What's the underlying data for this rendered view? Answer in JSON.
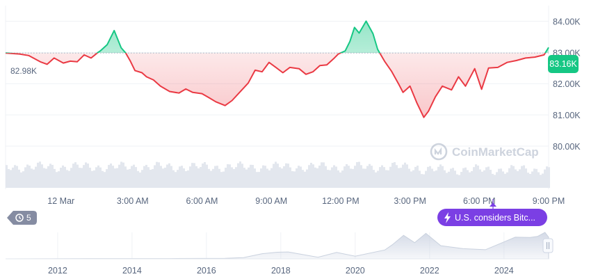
{
  "colors": {
    "up": "#16c784",
    "down": "#ea3943",
    "event_badge": "#7b3fe4",
    "history_badge": "#858ca2",
    "axis_text": "#58667e",
    "grid": "#eff2f5"
  },
  "badges": {
    "start_value": "82.98K",
    "current_value": "83.16K",
    "history_count": "5",
    "history_icon": "history-icon",
    "event_icon": "lightning-icon",
    "event_text": "U.S. considers Bitc..."
  },
  "watermark": {
    "text": "CoinMarketCap",
    "icon": "coinmarketcap-logo-icon"
  },
  "navigator": {
    "handle_icon": "pause-icon"
  },
  "chart_data": [
    {
      "type": "line",
      "baseline": 82.98,
      "ylim": [
        79.6,
        84.5
      ],
      "y_ticks": [
        "84.00K",
        "83.00K",
        "82.00K",
        "81.00K",
        "80.00K"
      ],
      "y_tick_values": [
        84,
        83,
        82,
        81,
        80
      ],
      "x_ticks": [
        "12 Mar",
        "3:00 AM",
        "6:00 AM",
        "9:00 AM",
        "12:00 PM",
        "3:00 PM",
        "6:00 PM",
        "9:00 PM"
      ],
      "x_tick_hours": [
        -0.1,
        3,
        6,
        9,
        12,
        15,
        18,
        21
      ],
      "x_range_hours": [
        -2.5,
        21
      ],
      "series": [
        {
          "x": [
            -2.5,
            -1.9,
            -1.5,
            -1.0,
            -0.7,
            -0.4,
            0,
            0.3,
            0.6,
            0.9,
            1.2,
            1.5,
            1.6,
            1.9,
            2.2,
            2.5,
            2.7,
            2.9,
            3.1,
            3.4,
            3.6,
            3.9,
            4.2,
            4.6,
            5.0,
            5.3,
            5.6,
            6.0,
            6.3,
            6.6,
            7.0,
            7.3,
            7.6,
            8.0,
            8.3,
            8.6,
            8.9,
            9.2,
            9.5,
            9.8,
            10.2,
            10.5,
            10.8,
            11.1,
            11.4,
            11.7,
            11.9,
            12.2,
            12.4,
            12.6,
            12.8,
            13.1,
            13.4,
            13.6,
            13.9,
            14.2,
            14.5,
            14.7,
            15.0,
            15.3,
            15.6,
            15.8,
            16.1,
            16.4,
            16.8,
            17.1,
            17.4,
            17.8,
            18.1,
            18.4,
            18.8,
            19.2,
            19.6,
            20.0,
            20.4,
            20.8,
            21.0
          ],
          "y": [
            82.98,
            82.95,
            82.9,
            82.7,
            82.62,
            82.82,
            82.66,
            82.72,
            82.7,
            82.92,
            82.82,
            83.0,
            83.05,
            83.25,
            83.7,
            83.15,
            82.98,
            82.72,
            82.42,
            82.35,
            82.22,
            82.12,
            81.92,
            81.75,
            81.7,
            81.83,
            81.72,
            81.68,
            81.55,
            81.42,
            81.3,
            81.46,
            81.7,
            82.02,
            82.43,
            82.38,
            82.68,
            82.52,
            82.35,
            82.52,
            82.48,
            82.3,
            82.38,
            82.58,
            82.6,
            82.8,
            82.95,
            83.05,
            83.35,
            83.8,
            83.62,
            84.0,
            83.6,
            83.1,
            82.72,
            82.4,
            82.0,
            81.72,
            81.92,
            81.38,
            80.92,
            81.12,
            81.58,
            81.92,
            81.8,
            82.22,
            81.92,
            82.48,
            81.82,
            82.5,
            82.52,
            82.68,
            82.74,
            82.82,
            82.85,
            82.92,
            83.16
          ]
        }
      ]
    },
    {
      "type": "area",
      "x_ticks": [
        "2012",
        "2014",
        "2016",
        "2018",
        "2020",
        "2022",
        "2024"
      ],
      "x_tick_years": [
        2012,
        2014,
        2016,
        2018,
        2020,
        2022,
        2024
      ],
      "x_range_years": [
        2010.6,
        2025.2
      ],
      "series": [
        {
          "x": [
            2010.6,
            2013,
            2015,
            2016.5,
            2017,
            2017.5,
            2017.9,
            2018.2,
            2019,
            2019.5,
            2020,
            2020.8,
            2021.0,
            2021.3,
            2021.6,
            2021.9,
            2022.3,
            2022.9,
            2023.5,
            2024.0,
            2024.3,
            2024.7,
            2024.9,
            2025.1,
            2025.2
          ],
          "y": [
            0.0,
            0.01,
            0.01,
            0.02,
            0.05,
            0.15,
            0.32,
            0.22,
            0.12,
            0.2,
            0.16,
            0.3,
            0.62,
            0.88,
            0.7,
            0.96,
            0.58,
            0.35,
            0.42,
            0.62,
            0.92,
            0.8,
            0.95,
            1.0,
            0.92
          ]
        }
      ]
    }
  ]
}
